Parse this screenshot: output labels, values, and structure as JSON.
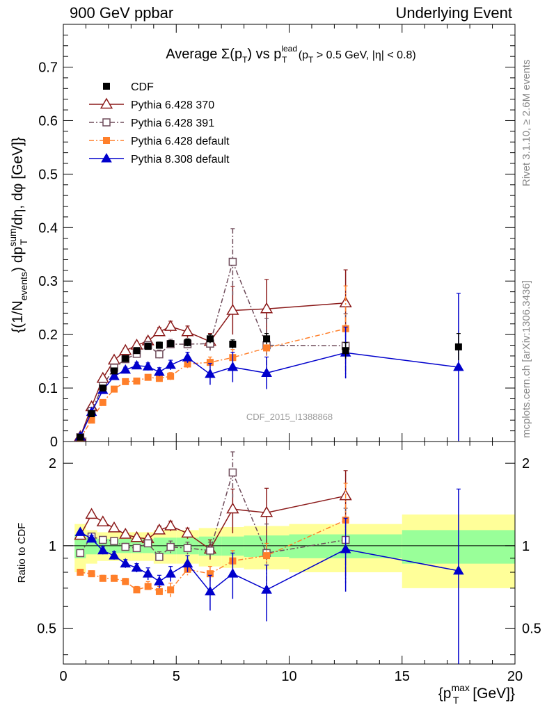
{
  "header": {
    "left": "900 GeV ppbar",
    "right": "Underlying Event"
  },
  "side_labels": {
    "rivet": "Rivet 3.1.10, ≥ 2.6M events",
    "mcplots": "mcplots.cern.ch [arXiv:1306.3436]"
  },
  "chart_data": [
    {
      "type": "scatter",
      "panel": "main",
      "title": "Average Σ(pT) vs pT^lead (pT > 0.5 GeV, |η| < 0.8)",
      "ylabel": "{(1/N_events) dpT^sum/dη, dφ [GeV]}",
      "watermark": "CDF_2015_I1388868",
      "xlim": [
        0,
        20
      ],
      "ylim": [
        0,
        0.78
      ],
      "x_ticks": [
        0,
        5,
        10,
        15,
        20
      ],
      "y_ticks": [
        0,
        0.1,
        0.2,
        0.3,
        0.4,
        0.5,
        0.6,
        0.7
      ],
      "y_tick_labels": [
        "0",
        "0.1",
        "0.2",
        "0.3",
        "0.4",
        "0.5",
        "0.6",
        "0.7"
      ],
      "legend_position": "top-left",
      "series": [
        {
          "name": "CDF",
          "color": "#000000",
          "marker": "filled-square",
          "line": "none",
          "x": [
            0.75,
            1.25,
            1.75,
            2.25,
            2.75,
            3.25,
            3.75,
            4.25,
            4.75,
            5.5,
            6.5,
            7.5,
            9.0,
            12.5,
            17.5
          ],
          "y": [
            0.008,
            0.052,
            0.1,
            0.132,
            0.155,
            0.17,
            0.178,
            0.18,
            0.183,
            0.185,
            0.192,
            0.182,
            0.192,
            0.17,
            0.177
          ],
          "err": [
            0.002,
            0.003,
            0.004,
            0.004,
            0.005,
            0.005,
            0.006,
            0.006,
            0.006,
            0.007,
            0.008,
            0.008,
            0.01,
            0.015,
            0.025
          ]
        },
        {
          "name": "Pythia 6.428 370",
          "color": "#8b1a1a",
          "marker": "open-triangle",
          "line": "solid",
          "x": [
            0.75,
            1.25,
            1.75,
            2.25,
            2.75,
            3.25,
            3.75,
            4.25,
            4.75,
            5.5,
            6.5,
            7.5,
            9.0,
            12.5
          ],
          "y": [
            0.009,
            0.065,
            0.118,
            0.152,
            0.17,
            0.18,
            0.188,
            0.205,
            0.215,
            0.205,
            0.187,
            0.245,
            0.248,
            0.259
          ],
          "err": [
            0.001,
            0.003,
            0.004,
            0.005,
            0.005,
            0.006,
            0.007,
            0.008,
            0.01,
            0.011,
            0.015,
            0.045,
            0.055,
            0.062
          ]
        },
        {
          "name": "Pythia 6.428 391",
          "color": "#6e4b5a",
          "marker": "open-square",
          "line": "dashdot",
          "x": [
            0.75,
            1.25,
            1.75,
            2.25,
            2.75,
            3.25,
            3.75,
            4.25,
            4.75,
            5.5,
            6.5,
            7.5,
            9.0,
            12.5
          ],
          "y": [
            0.008,
            0.057,
            0.104,
            0.138,
            0.154,
            0.164,
            0.18,
            0.163,
            0.182,
            0.182,
            0.183,
            0.336,
            0.18,
            0.179
          ],
          "err": [
            0.001,
            0.003,
            0.004,
            0.005,
            0.005,
            0.006,
            0.007,
            0.008,
            0.009,
            0.01,
            0.013,
            0.062,
            0.05,
            0.06
          ]
        },
        {
          "name": "Pythia 6.428 default",
          "color": "#ff7f2a",
          "marker": "filled-square",
          "line": "dashdot",
          "x": [
            0.75,
            1.25,
            1.75,
            2.25,
            2.75,
            3.25,
            3.75,
            4.25,
            4.75,
            5.5,
            6.5,
            7.5,
            9.0,
            12.5
          ],
          "y": [
            0.006,
            0.04,
            0.073,
            0.098,
            0.112,
            0.113,
            0.12,
            0.118,
            0.122,
            0.145,
            0.148,
            0.157,
            0.175,
            0.211
          ],
          "err": [
            0.001,
            0.002,
            0.003,
            0.004,
            0.004,
            0.005,
            0.005,
            0.006,
            0.007,
            0.008,
            0.01,
            0.015,
            0.02,
            0.08
          ]
        },
        {
          "name": "Pythia 8.308 default",
          "color": "#0000cc",
          "marker": "filled-triangle",
          "line": "solid",
          "x": [
            0.75,
            1.25,
            1.75,
            2.25,
            2.75,
            3.25,
            3.75,
            4.25,
            4.75,
            5.5,
            6.5,
            7.5,
            9.0,
            12.5,
            17.5
          ],
          "y": [
            0.009,
            0.055,
            0.096,
            0.122,
            0.134,
            0.142,
            0.14,
            0.13,
            0.143,
            0.157,
            0.126,
            0.139,
            0.128,
            0.166,
            0.139
          ],
          "err": [
            0.001,
            0.003,
            0.004,
            0.005,
            0.005,
            0.006,
            0.007,
            0.008,
            0.009,
            0.01,
            0.02,
            0.028,
            0.03,
            0.048,
            0.138
          ]
        }
      ]
    },
    {
      "type": "scatter",
      "panel": "ratio",
      "ylabel": "Ratio to CDF",
      "xlabel": "{pT^max [GeV]}",
      "xlim": [
        0,
        20
      ],
      "ylim": [
        0.37,
        2.4
      ],
      "y_scale": "log",
      "x_ticks": [
        0,
        5,
        10,
        15,
        20
      ],
      "x_tick_labels": [
        "0",
        "5",
        "10",
        "15",
        "20"
      ],
      "y_ticks": [
        0.5,
        1,
        2
      ],
      "y_tick_labels": [
        "0.5",
        "1",
        "2"
      ],
      "reference_line": 1,
      "bands": {
        "edges": [
          0.5,
          1.0,
          1.5,
          2.0,
          2.5,
          3.0,
          3.5,
          4.0,
          4.5,
          5.0,
          6.0,
          7.0,
          8.0,
          10.0,
          15.0,
          20.0
        ],
        "green_half_width": [
          0.1,
          0.07,
          0.06,
          0.06,
          0.06,
          0.06,
          0.06,
          0.07,
          0.07,
          0.07,
          0.08,
          0.08,
          0.09,
          0.1,
          0.14
        ],
        "yellow_half_width": [
          0.2,
          0.14,
          0.12,
          0.12,
          0.12,
          0.12,
          0.12,
          0.14,
          0.14,
          0.14,
          0.16,
          0.17,
          0.18,
          0.2,
          0.3
        ],
        "green_color": "#99ff99",
        "yellow_color": "#ffff99"
      },
      "series": [
        {
          "name": "Pythia 6.428 370",
          "color": "#8b1a1a",
          "marker": "open-triangle",
          "line": "solid",
          "x": [
            0.75,
            1.25,
            1.75,
            2.25,
            2.75,
            3.25,
            3.75,
            4.25,
            4.75,
            5.5,
            6.5,
            7.5,
            9.0,
            12.5
          ],
          "y": [
            1.09,
            1.3,
            1.22,
            1.16,
            1.1,
            1.07,
            1.06,
            1.14,
            1.18,
            1.11,
            0.97,
            1.36,
            1.32,
            1.52
          ],
          "err": [
            0.02,
            0.03,
            0.03,
            0.03,
            0.03,
            0.03,
            0.03,
            0.04,
            0.05,
            0.05,
            0.08,
            0.25,
            0.3,
            0.36
          ]
        },
        {
          "name": "Pythia 6.428 391",
          "color": "#6e4b5a",
          "marker": "open-square",
          "line": "dashdot",
          "x": [
            0.75,
            1.25,
            1.75,
            2.25,
            2.75,
            3.25,
            3.75,
            4.25,
            4.75,
            5.5,
            6.5,
            7.5,
            9.0,
            12.5
          ],
          "y": [
            0.94,
            1.08,
            1.05,
            1.04,
            0.99,
            0.98,
            1.02,
            0.91,
            0.99,
            0.98,
            0.96,
            1.85,
            0.94,
            1.05
          ],
          "err": [
            0.02,
            0.03,
            0.03,
            0.03,
            0.03,
            0.03,
            0.03,
            0.04,
            0.05,
            0.05,
            0.07,
            0.35,
            0.26,
            0.32
          ]
        },
        {
          "name": "Pythia 6.428 default",
          "color": "#ff7f2a",
          "marker": "filled-square",
          "line": "dashdot",
          "x": [
            0.75,
            1.25,
            1.75,
            2.25,
            2.75,
            3.25,
            3.75,
            4.25,
            4.75,
            5.5,
            6.5,
            7.5,
            9.0,
            12.5
          ],
          "y": [
            0.8,
            0.79,
            0.76,
            0.76,
            0.74,
            0.69,
            0.71,
            0.68,
            0.69,
            0.82,
            0.79,
            0.88,
            0.92,
            1.24
          ],
          "err": [
            0.01,
            0.02,
            0.02,
            0.02,
            0.02,
            0.02,
            0.03,
            0.03,
            0.04,
            0.04,
            0.05,
            0.08,
            0.1,
            0.45
          ]
        },
        {
          "name": "Pythia 8.308 default",
          "color": "#0000cc",
          "marker": "filled-triangle",
          "line": "solid",
          "x": [
            0.75,
            1.25,
            1.75,
            2.25,
            2.75,
            3.25,
            3.75,
            4.25,
            4.75,
            5.5,
            6.5,
            7.5,
            9.0,
            12.5,
            17.5
          ],
          "y": [
            1.12,
            1.06,
            0.96,
            0.92,
            0.86,
            0.83,
            0.79,
            0.74,
            0.79,
            0.86,
            0.68,
            0.79,
            0.69,
            0.97,
            0.81
          ],
          "err": [
            0.02,
            0.03,
            0.03,
            0.03,
            0.03,
            0.03,
            0.04,
            0.04,
            0.05,
            0.06,
            0.1,
            0.15,
            0.16,
            0.29,
            0.8
          ]
        }
      ]
    }
  ]
}
